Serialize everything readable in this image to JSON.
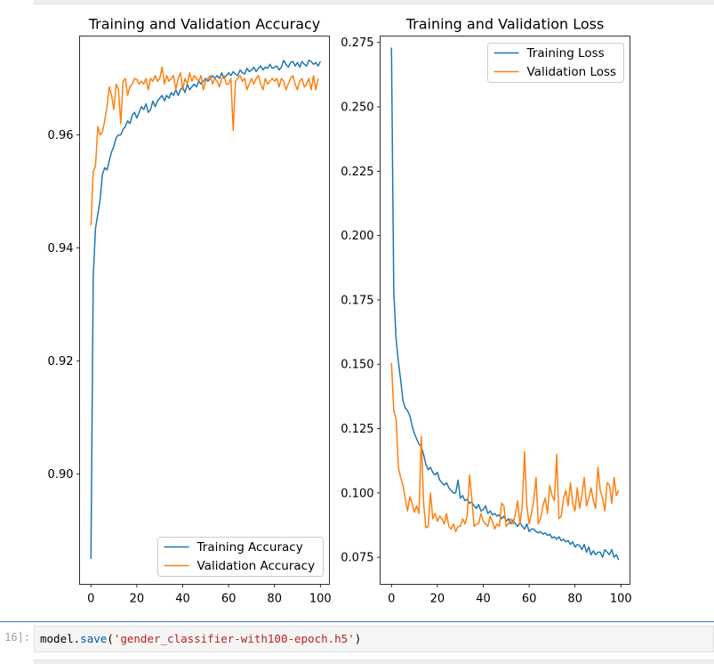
{
  "chart_data": [
    {
      "type": "line",
      "title": "Training and Validation Accuracy",
      "xlabel": "",
      "ylabel": "",
      "xlim": [
        -4.95,
        103.95
      ],
      "ylim": [
        0.8805,
        0.9775
      ],
      "xticks": [
        0,
        20,
        40,
        60,
        80,
        100
      ],
      "yticks": [
        0.9,
        0.92,
        0.94,
        0.96
      ],
      "ytick_labels": [
        "0.90",
        "0.92",
        "0.94",
        "0.96"
      ],
      "legend": "lower-right",
      "grid": false,
      "series": [
        {
          "name": "Training Accuracy",
          "color": "#1f77b4",
          "values": [
            0.885,
            0.935,
            0.9435,
            0.946,
            0.9485,
            0.953,
            0.9542,
            0.9538,
            0.9555,
            0.957,
            0.958,
            0.9595,
            0.96,
            0.96,
            0.961,
            0.9615,
            0.9625,
            0.962,
            0.9635,
            0.964,
            0.963,
            0.964,
            0.965,
            0.9645,
            0.9655,
            0.964,
            0.9645,
            0.966,
            0.965,
            0.966,
            0.9665,
            0.967,
            0.966,
            0.967,
            0.9665,
            0.9675,
            0.967,
            0.968,
            0.967,
            0.968,
            0.9685,
            0.9675,
            0.969,
            0.968,
            0.9685,
            0.969,
            0.9685,
            0.9695,
            0.969,
            0.9695,
            0.97,
            0.9695,
            0.97,
            0.9705,
            0.97,
            0.9705,
            0.97,
            0.971,
            0.97,
            0.9705,
            0.971,
            0.9705,
            0.9712,
            0.9708,
            0.9705,
            0.9715,
            0.971,
            0.9708,
            0.9718,
            0.9712,
            0.9715,
            0.972,
            0.9712,
            0.9718,
            0.9722,
            0.9715,
            0.972,
            0.9718,
            0.9725,
            0.9718,
            0.972,
            0.9722,
            0.9715,
            0.972,
            0.9732,
            0.9725,
            0.972,
            0.9728,
            0.973,
            0.9722,
            0.9728,
            0.972,
            0.973,
            0.9725,
            0.9722,
            0.9732,
            0.973,
            0.9725,
            0.9728,
            0.9722,
            0.973
          ]
        },
        {
          "name": "Validation Accuracy",
          "color": "#ff7f0e",
          "values": [
            0.944,
            0.9535,
            0.9545,
            0.9615,
            0.96,
            0.9605,
            0.9625,
            0.965,
            0.9685,
            0.967,
            0.9645,
            0.969,
            0.968,
            0.962,
            0.9695,
            0.97,
            0.967,
            0.9685,
            0.969,
            0.97,
            0.9698,
            0.969,
            0.9695,
            0.969,
            0.97,
            0.968,
            0.97,
            0.9695,
            0.9705,
            0.9695,
            0.97,
            0.972,
            0.969,
            0.9705,
            0.9695,
            0.97,
            0.9705,
            0.968,
            0.97,
            0.971,
            0.968,
            0.97,
            0.969,
            0.971,
            0.9695,
            0.9705,
            0.97,
            0.9695,
            0.9705,
            0.968,
            0.9695,
            0.97,
            0.9705,
            0.969,
            0.97,
            0.9695,
            0.9685,
            0.97,
            0.9705,
            0.969,
            0.969,
            0.97,
            0.9608,
            0.9695,
            0.97,
            0.9705,
            0.9695,
            0.97,
            0.968,
            0.969,
            0.97,
            0.969,
            0.97,
            0.9705,
            0.969,
            0.968,
            0.97,
            0.969,
            0.9695,
            0.97,
            0.9695,
            0.97,
            0.9685,
            0.97,
            0.9695,
            0.968,
            0.969,
            0.97,
            0.9705,
            0.969,
            0.968,
            0.9695,
            0.97,
            0.9685,
            0.969,
            0.97,
            0.968,
            0.9705,
            0.968,
            0.97
          ]
        }
      ]
    },
    {
      "type": "line",
      "title": "Training and Validation Loss",
      "xlabel": "",
      "ylabel": "",
      "xlim": [
        -4.95,
        103.95
      ],
      "ylim": [
        0.0645,
        0.2775
      ],
      "xticks": [
        0,
        20,
        40,
        60,
        80,
        100
      ],
      "yticks": [
        0.075,
        0.1,
        0.125,
        0.15,
        0.175,
        0.2,
        0.225,
        0.25,
        0.275
      ],
      "ytick_labels": [
        "0.075",
        "0.100",
        "0.125",
        "0.150",
        "0.175",
        "0.200",
        "0.225",
        "0.250",
        "0.275"
      ],
      "legend": "upper-right",
      "grid": false,
      "series": [
        {
          "name": "Training Loss",
          "color": "#1f77b4",
          "values": [
            0.273,
            0.178,
            0.16,
            0.151,
            0.144,
            0.136,
            0.133,
            0.132,
            0.13,
            0.126,
            0.123,
            0.121,
            0.119,
            0.118,
            0.115,
            0.111,
            0.109,
            0.11,
            0.108,
            0.107,
            0.108,
            0.105,
            0.104,
            0.103,
            0.104,
            0.102,
            0.101,
            0.1,
            0.1,
            0.105,
            0.098,
            0.099,
            0.097,
            0.0975,
            0.096,
            0.0965,
            0.095,
            0.094,
            0.0955,
            0.093,
            0.0935,
            0.095,
            0.092,
            0.093,
            0.0915,
            0.092,
            0.091,
            0.0915,
            0.09,
            0.091,
            0.089,
            0.09,
            0.088,
            0.0895,
            0.088,
            0.087,
            0.0885,
            0.087,
            0.086,
            0.088,
            0.085,
            0.086,
            0.086,
            0.085,
            0.0845,
            0.085,
            0.084,
            0.0845,
            0.0835,
            0.084,
            0.0825,
            0.083,
            0.082,
            0.083,
            0.0815,
            0.082,
            0.081,
            0.0815,
            0.08,
            0.081,
            0.079,
            0.08,
            0.0795,
            0.078,
            0.08,
            0.077,
            0.079,
            0.076,
            0.0775,
            0.076,
            0.077,
            0.077,
            0.075,
            0.078,
            0.077,
            0.076,
            0.078,
            0.075,
            0.076,
            0.074
          ]
        },
        {
          "name": "Validation Loss",
          "color": "#ff7f0e",
          "values": [
            0.1505,
            0.132,
            0.129,
            0.11,
            0.106,
            0.103,
            0.098,
            0.093,
            0.0985,
            0.096,
            0.0925,
            0.095,
            0.092,
            0.122,
            0.096,
            0.0865,
            0.087,
            0.1,
            0.09,
            0.092,
            0.089,
            0.091,
            0.09,
            0.088,
            0.092,
            0.087,
            0.086,
            0.088,
            0.085,
            0.087,
            0.087,
            0.09,
            0.088,
            0.091,
            0.107,
            0.098,
            0.087,
            0.088,
            0.088,
            0.092,
            0.089,
            0.088,
            0.087,
            0.091,
            0.089,
            0.086,
            0.088,
            0.087,
            0.096,
            0.095,
            0.087,
            0.088,
            0.09,
            0.088,
            0.092,
            0.097,
            0.088,
            0.095,
            0.116,
            0.095,
            0.088,
            0.092,
            0.097,
            0.106,
            0.088,
            0.09,
            0.095,
            0.098,
            0.092,
            0.103,
            0.099,
            0.097,
            0.115,
            0.09,
            0.091,
            0.098,
            0.101,
            0.095,
            0.104,
            0.096,
            0.093,
            0.102,
            0.094,
            0.099,
            0.106,
            0.095,
            0.098,
            0.102,
            0.097,
            0.094,
            0.11,
            0.101,
            0.098,
            0.093,
            0.104,
            0.103,
            0.096,
            0.106,
            0.099,
            0.101
          ]
        }
      ]
    }
  ],
  "notebook": {
    "prompt": "16]:",
    "code": {
      "object": "model",
      "dot": ".",
      "method": "save",
      "open_paren": "(",
      "argument": "'gender_classifier-with100-epoch.h5'",
      "close_paren": ")"
    }
  }
}
